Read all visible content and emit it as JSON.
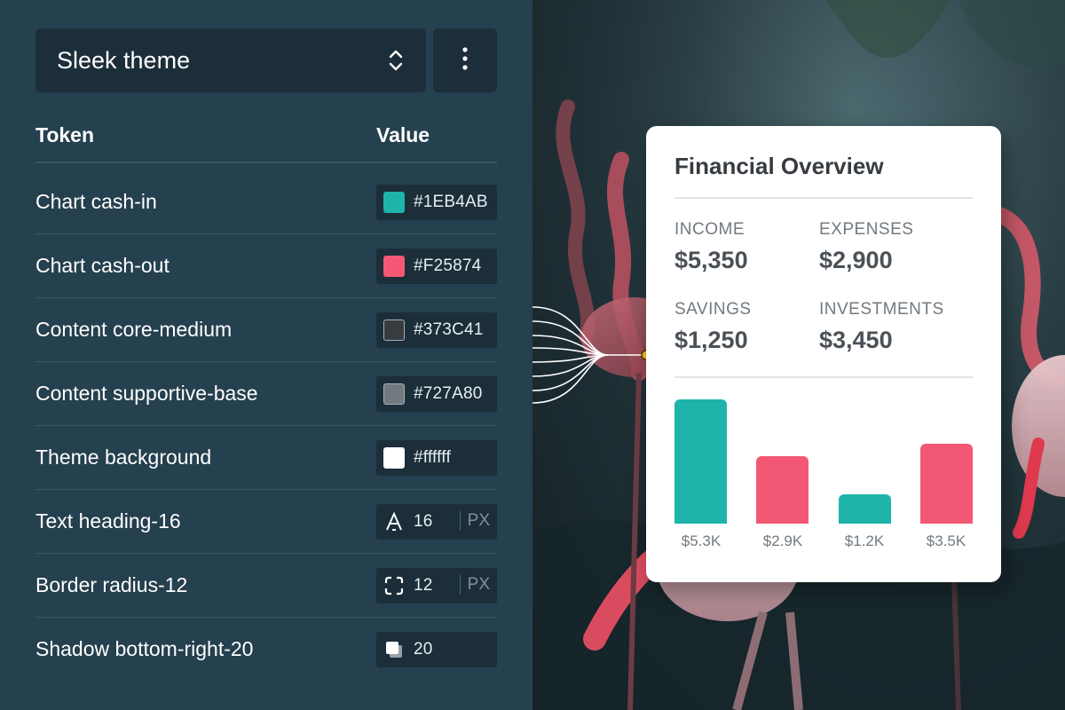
{
  "theme_selector": {
    "label": "Sleek theme",
    "chevron_icon": "chevron-up-down-icon",
    "more_icon": "vertical-dots-icon"
  },
  "table": {
    "headers": {
      "token": "Token",
      "value": "Value"
    },
    "rows": [
      {
        "name": "Chart cash-in",
        "kind": "color",
        "value": "#1EB4AB",
        "swatch": "#1EB4AB"
      },
      {
        "name": "Chart cash-out",
        "kind": "color",
        "value": "#F25874",
        "swatch": "#F25874"
      },
      {
        "name": "Content core-medium",
        "kind": "color",
        "value": "#373C41",
        "swatch": "#373C41"
      },
      {
        "name": "Content supportive-base",
        "kind": "color",
        "value": "#727A80",
        "swatch": "#727A80"
      },
      {
        "name": "Theme background",
        "kind": "color",
        "value": "#ffffff",
        "swatch": "#ffffff"
      },
      {
        "name": "Text heading-16",
        "kind": "size",
        "icon": "font-size-icon",
        "value": "16",
        "unit": "PX"
      },
      {
        "name": "Border radius-12",
        "kind": "size",
        "icon": "border-radius-icon",
        "value": "12",
        "unit": "PX"
      },
      {
        "name": "Shadow bottom-right-20",
        "kind": "size",
        "icon": "shadow-icon",
        "value": "20"
      }
    ]
  },
  "card": {
    "title": "Financial Overview",
    "stats": [
      {
        "label": "INCOME",
        "value": "$5,350"
      },
      {
        "label": "EXPENSES",
        "value": "$2,900"
      },
      {
        "label": "SAVINGS",
        "value": "$1,250"
      },
      {
        "label": "INVESTMENTS",
        "value": "$3,450"
      }
    ]
  },
  "chart_data": {
    "type": "bar",
    "categories": [
      "$5.3K",
      "$2.9K",
      "$1.2K",
      "$3.5K"
    ],
    "values": [
      5.35,
      2.9,
      1.25,
      3.45
    ],
    "colors": [
      "#1EB4AB",
      "#F25874",
      "#1EB4AB",
      "#F25874"
    ],
    "title": "",
    "xlabel": "",
    "ylabel": "",
    "ylim": [
      0,
      5.35
    ],
    "grid": false
  },
  "colors": {
    "panel_bg": "#25404f",
    "control_bg": "#1c2e39",
    "cash_in": "#1EB4AB",
    "cash_out": "#F25874",
    "connector_dot": "#f2b61c"
  }
}
